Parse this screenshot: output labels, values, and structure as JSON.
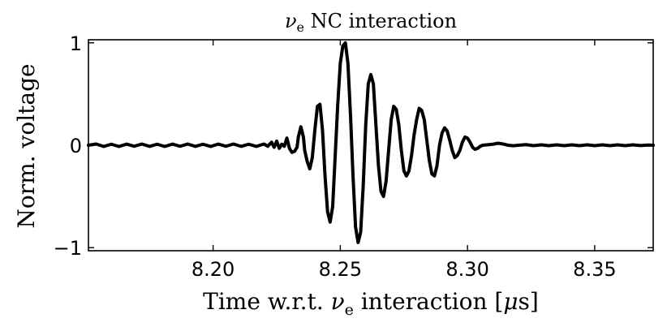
{
  "chart_data": {
    "type": "line",
    "title": {
      "symbol": "ν",
      "subscript": "e",
      "rest": " NC interaction"
    },
    "xlabel": {
      "prefix": "Time w.r.t. ",
      "symbol": "ν",
      "subscript": "e",
      "suffix": " interaction [",
      "unit_symbol": "μ",
      "unit_rest": "s]"
    },
    "ylabel": "Norm. voltage",
    "xlim": [
      8.151,
      8.373
    ],
    "ylim": [
      -1.03,
      1.03
    ],
    "xticks": [
      {
        "value": 8.2,
        "label": "8.20"
      },
      {
        "value": 8.25,
        "label": "8.25"
      },
      {
        "value": 8.3,
        "label": "8.30"
      },
      {
        "value": 8.35,
        "label": "8.35"
      }
    ],
    "yticks": [
      {
        "value": 1,
        "label": "1"
      },
      {
        "value": 0,
        "label": "0"
      },
      {
        "value": -1,
        "label": "−1"
      }
    ],
    "grid": false,
    "legend": null,
    "line_color": "#000000",
    "series": [
      {
        "points": [
          [
            8.151,
            0.0
          ],
          [
            8.154,
            0.012
          ],
          [
            8.157,
            -0.012
          ],
          [
            8.16,
            0.01
          ],
          [
            8.163,
            -0.012
          ],
          [
            8.166,
            0.011
          ],
          [
            8.169,
            -0.01
          ],
          [
            8.172,
            0.012
          ],
          [
            8.175,
            -0.011
          ],
          [
            8.178,
            0.01
          ],
          [
            8.181,
            -0.012
          ],
          [
            8.184,
            0.011
          ],
          [
            8.187,
            -0.01
          ],
          [
            8.19,
            0.012
          ],
          [
            8.193,
            -0.011
          ],
          [
            8.196,
            0.01
          ],
          [
            8.199,
            -0.012
          ],
          [
            8.202,
            0.011
          ],
          [
            8.205,
            -0.01
          ],
          [
            8.208,
            0.012
          ],
          [
            8.211,
            -0.011
          ],
          [
            8.214,
            0.01
          ],
          [
            8.217,
            -0.011
          ],
          [
            8.22,
            0.012
          ],
          [
            8.2215,
            -0.01
          ],
          [
            8.223,
            0.03
          ],
          [
            8.224,
            -0.02
          ],
          [
            8.225,
            0.04
          ],
          [
            8.226,
            -0.03
          ],
          [
            8.227,
            0.01
          ],
          [
            8.228,
            -0.01
          ],
          [
            8.229,
            0.07
          ],
          [
            8.23,
            -0.03
          ],
          [
            8.231,
            -0.07
          ],
          [
            8.232,
            -0.06
          ],
          [
            8.233,
            -0.02
          ],
          [
            8.2335,
            0.08
          ],
          [
            8.2345,
            0.18
          ],
          [
            8.2355,
            0.08
          ],
          [
            8.236,
            -0.05
          ],
          [
            8.237,
            -0.16
          ],
          [
            8.238,
            -0.23
          ],
          [
            8.239,
            -0.12
          ],
          [
            8.24,
            0.15
          ],
          [
            8.241,
            0.38
          ],
          [
            8.242,
            0.4
          ],
          [
            8.243,
            0.15
          ],
          [
            8.244,
            -0.3
          ],
          [
            8.245,
            -0.65
          ],
          [
            8.246,
            -0.75
          ],
          [
            8.247,
            -0.6
          ],
          [
            8.248,
            -0.1
          ],
          [
            8.249,
            0.4
          ],
          [
            8.25,
            0.8
          ],
          [
            8.251,
            0.97
          ],
          [
            8.252,
            1.0
          ],
          [
            8.253,
            0.8
          ],
          [
            8.254,
            0.3
          ],
          [
            8.255,
            -0.3
          ],
          [
            8.256,
            -0.8
          ],
          [
            8.257,
            -0.95
          ],
          [
            8.258,
            -0.85
          ],
          [
            8.259,
            -0.4
          ],
          [
            8.26,
            0.2
          ],
          [
            8.261,
            0.6
          ],
          [
            8.262,
            0.69
          ],
          [
            8.263,
            0.6
          ],
          [
            8.264,
            0.2
          ],
          [
            8.265,
            -0.2
          ],
          [
            8.266,
            -0.45
          ],
          [
            8.267,
            -0.5
          ],
          [
            8.268,
            -0.35
          ],
          [
            8.269,
            -0.05
          ],
          [
            8.27,
            0.25
          ],
          [
            8.271,
            0.38
          ],
          [
            8.272,
            0.35
          ],
          [
            8.273,
            0.2
          ],
          [
            8.274,
            -0.05
          ],
          [
            8.275,
            -0.25
          ],
          [
            8.276,
            -0.3
          ],
          [
            8.277,
            -0.25
          ],
          [
            8.278,
            -0.1
          ],
          [
            8.279,
            0.1
          ],
          [
            8.28,
            0.25
          ],
          [
            8.281,
            0.36
          ],
          [
            8.282,
            0.34
          ],
          [
            8.283,
            0.25
          ],
          [
            8.284,
            0.05
          ],
          [
            8.285,
            -0.15
          ],
          [
            8.286,
            -0.28
          ],
          [
            8.287,
            -0.3
          ],
          [
            8.288,
            -0.2
          ],
          [
            8.289,
            0.0
          ],
          [
            8.29,
            0.12
          ],
          [
            8.291,
            0.17
          ],
          [
            8.292,
            0.14
          ],
          [
            8.293,
            0.05
          ],
          [
            8.294,
            -0.05
          ],
          [
            8.295,
            -0.12
          ],
          [
            8.296,
            -0.1
          ],
          [
            8.297,
            -0.05
          ],
          [
            8.298,
            0.03
          ],
          [
            8.299,
            0.08
          ],
          [
            8.3,
            0.07
          ],
          [
            8.301,
            0.03
          ],
          [
            8.302,
            -0.02
          ],
          [
            8.303,
            -0.04
          ],
          [
            8.304,
            -0.03
          ],
          [
            8.305,
            -0.01
          ],
          [
            8.306,
            0.0
          ],
          [
            8.308,
            0.005
          ],
          [
            8.31,
            0.01
          ],
          [
            8.312,
            0.02
          ],
          [
            8.314,
            0.012
          ],
          [
            8.316,
            0.0
          ],
          [
            8.318,
            -0.005
          ],
          [
            8.32,
            0.0
          ],
          [
            8.323,
            0.006
          ],
          [
            8.326,
            -0.004
          ],
          [
            8.329,
            0.004
          ],
          [
            8.332,
            -0.004
          ],
          [
            8.335,
            0.004
          ],
          [
            8.338,
            -0.004
          ],
          [
            8.341,
            0.004
          ],
          [
            8.344,
            -0.004
          ],
          [
            8.347,
            0.004
          ],
          [
            8.35,
            -0.004
          ],
          [
            8.353,
            0.004
          ],
          [
            8.356,
            -0.004
          ],
          [
            8.359,
            0.004
          ],
          [
            8.362,
            -0.004
          ],
          [
            8.365,
            0.004
          ],
          [
            8.368,
            -0.003
          ],
          [
            8.371,
            0.002
          ],
          [
            8.373,
            0.0
          ]
        ]
      }
    ]
  }
}
